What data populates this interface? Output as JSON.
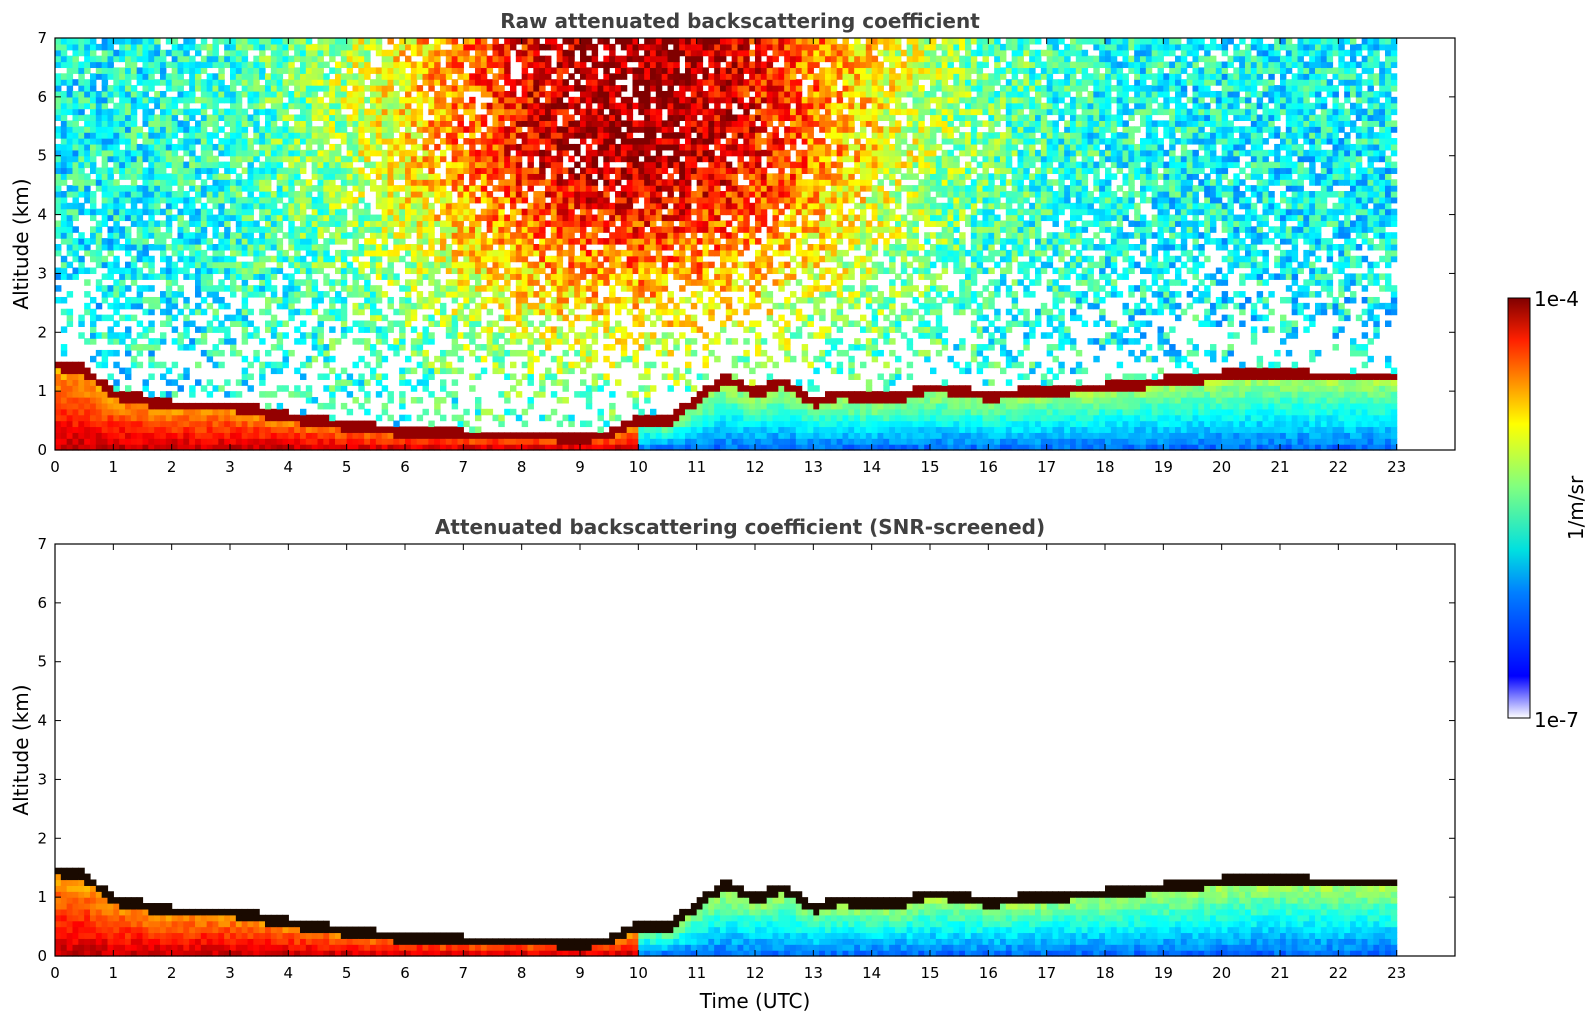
{
  "chart_data": [
    {
      "type": "heatmap",
      "title": "Raw attenuated backscattering coefficient",
      "xlabel": "",
      "ylabel": "Altitude (km)",
      "xlim": [
        0,
        24
      ],
      "ylim": [
        0,
        7
      ],
      "xticks": [
        "0",
        "1",
        "2",
        "3",
        "4",
        "5",
        "6",
        "7",
        "8",
        "9",
        "10",
        "11",
        "12",
        "13",
        "14",
        "15",
        "16",
        "17",
        "18",
        "19",
        "20",
        "21",
        "22",
        "23"
      ],
      "yticks": [
        "0",
        "1",
        "2",
        "3",
        "4",
        "5",
        "6",
        "7"
      ],
      "data_end_time": 23,
      "screened": false,
      "layer_top_km": [
        [
          0,
          1.5
        ],
        [
          0.5,
          1.4
        ],
        [
          1,
          1.0
        ],
        [
          2,
          0.8
        ],
        [
          3,
          0.8
        ],
        [
          4,
          0.6
        ],
        [
          5,
          0.45
        ],
        [
          6,
          0.35
        ],
        [
          7,
          0.3
        ],
        [
          8,
          0.3
        ],
        [
          9,
          0.25
        ],
        [
          9.5,
          0.3
        ],
        [
          10,
          0.55
        ],
        [
          10.5,
          0.5
        ],
        [
          11,
          0.9
        ],
        [
          11.5,
          1.25
        ],
        [
          12,
          1.0
        ],
        [
          12.5,
          1.2
        ],
        [
          13,
          0.85
        ],
        [
          13.5,
          1.0
        ],
        [
          14,
          0.9
        ],
        [
          14.5,
          0.95
        ],
        [
          15,
          1.1
        ],
        [
          15.5,
          1.05
        ],
        [
          16,
          0.95
        ],
        [
          16.5,
          1.0
        ],
        [
          17,
          1.05
        ],
        [
          18,
          1.1
        ],
        [
          19,
          1.2
        ],
        [
          20,
          1.3
        ],
        [
          21,
          1.35
        ],
        [
          21.5,
          1.3
        ],
        [
          22,
          1.3
        ],
        [
          23,
          1.3
        ]
      ],
      "colorbar": {
        "label": "1/m/sr",
        "max_label": "1e-4",
        "min_label": "1e-7",
        "colormap": "jet"
      }
    },
    {
      "type": "heatmap",
      "title": "Attenuated backscattering coefficient (SNR-screened)",
      "xlabel": "Time (UTC)",
      "ylabel": "Altitude (km)",
      "xlim": [
        0,
        24
      ],
      "ylim": [
        0,
        7
      ],
      "xticks": [
        "0",
        "1",
        "2",
        "3",
        "4",
        "5",
        "6",
        "7",
        "8",
        "9",
        "10",
        "11",
        "12",
        "13",
        "14",
        "15",
        "16",
        "17",
        "18",
        "19",
        "20",
        "21",
        "22",
        "23"
      ],
      "yticks": [
        "0",
        "1",
        "2",
        "3",
        "4",
        "5",
        "6",
        "7"
      ],
      "data_end_time": 23,
      "screened": true,
      "layer_top_km": [
        [
          0,
          1.5
        ],
        [
          0.5,
          1.4
        ],
        [
          1,
          1.0
        ],
        [
          2,
          0.8
        ],
        [
          3,
          0.8
        ],
        [
          4,
          0.6
        ],
        [
          5,
          0.45
        ],
        [
          6,
          0.35
        ],
        [
          7,
          0.3
        ],
        [
          8,
          0.3
        ],
        [
          9,
          0.25
        ],
        [
          9.5,
          0.3
        ],
        [
          10,
          0.55
        ],
        [
          10.5,
          0.5
        ],
        [
          11,
          0.9
        ],
        [
          11.5,
          1.25
        ],
        [
          12,
          1.0
        ],
        [
          12.5,
          1.2
        ],
        [
          13,
          0.85
        ],
        [
          13.5,
          1.0
        ],
        [
          14,
          0.9
        ],
        [
          14.5,
          0.95
        ],
        [
          15,
          1.1
        ],
        [
          15.5,
          1.05
        ],
        [
          16,
          0.95
        ],
        [
          16.5,
          1.0
        ],
        [
          17,
          1.05
        ],
        [
          18,
          1.1
        ],
        [
          19,
          1.2
        ],
        [
          20,
          1.3
        ],
        [
          21,
          1.35
        ],
        [
          21.5,
          1.3
        ],
        [
          22,
          1.3
        ],
        [
          23,
          1.3
        ]
      ],
      "colorbar": {
        "label": "1/m/sr",
        "max_label": "1e-4",
        "min_label": "1e-7",
        "colormap": "jet"
      }
    }
  ]
}
